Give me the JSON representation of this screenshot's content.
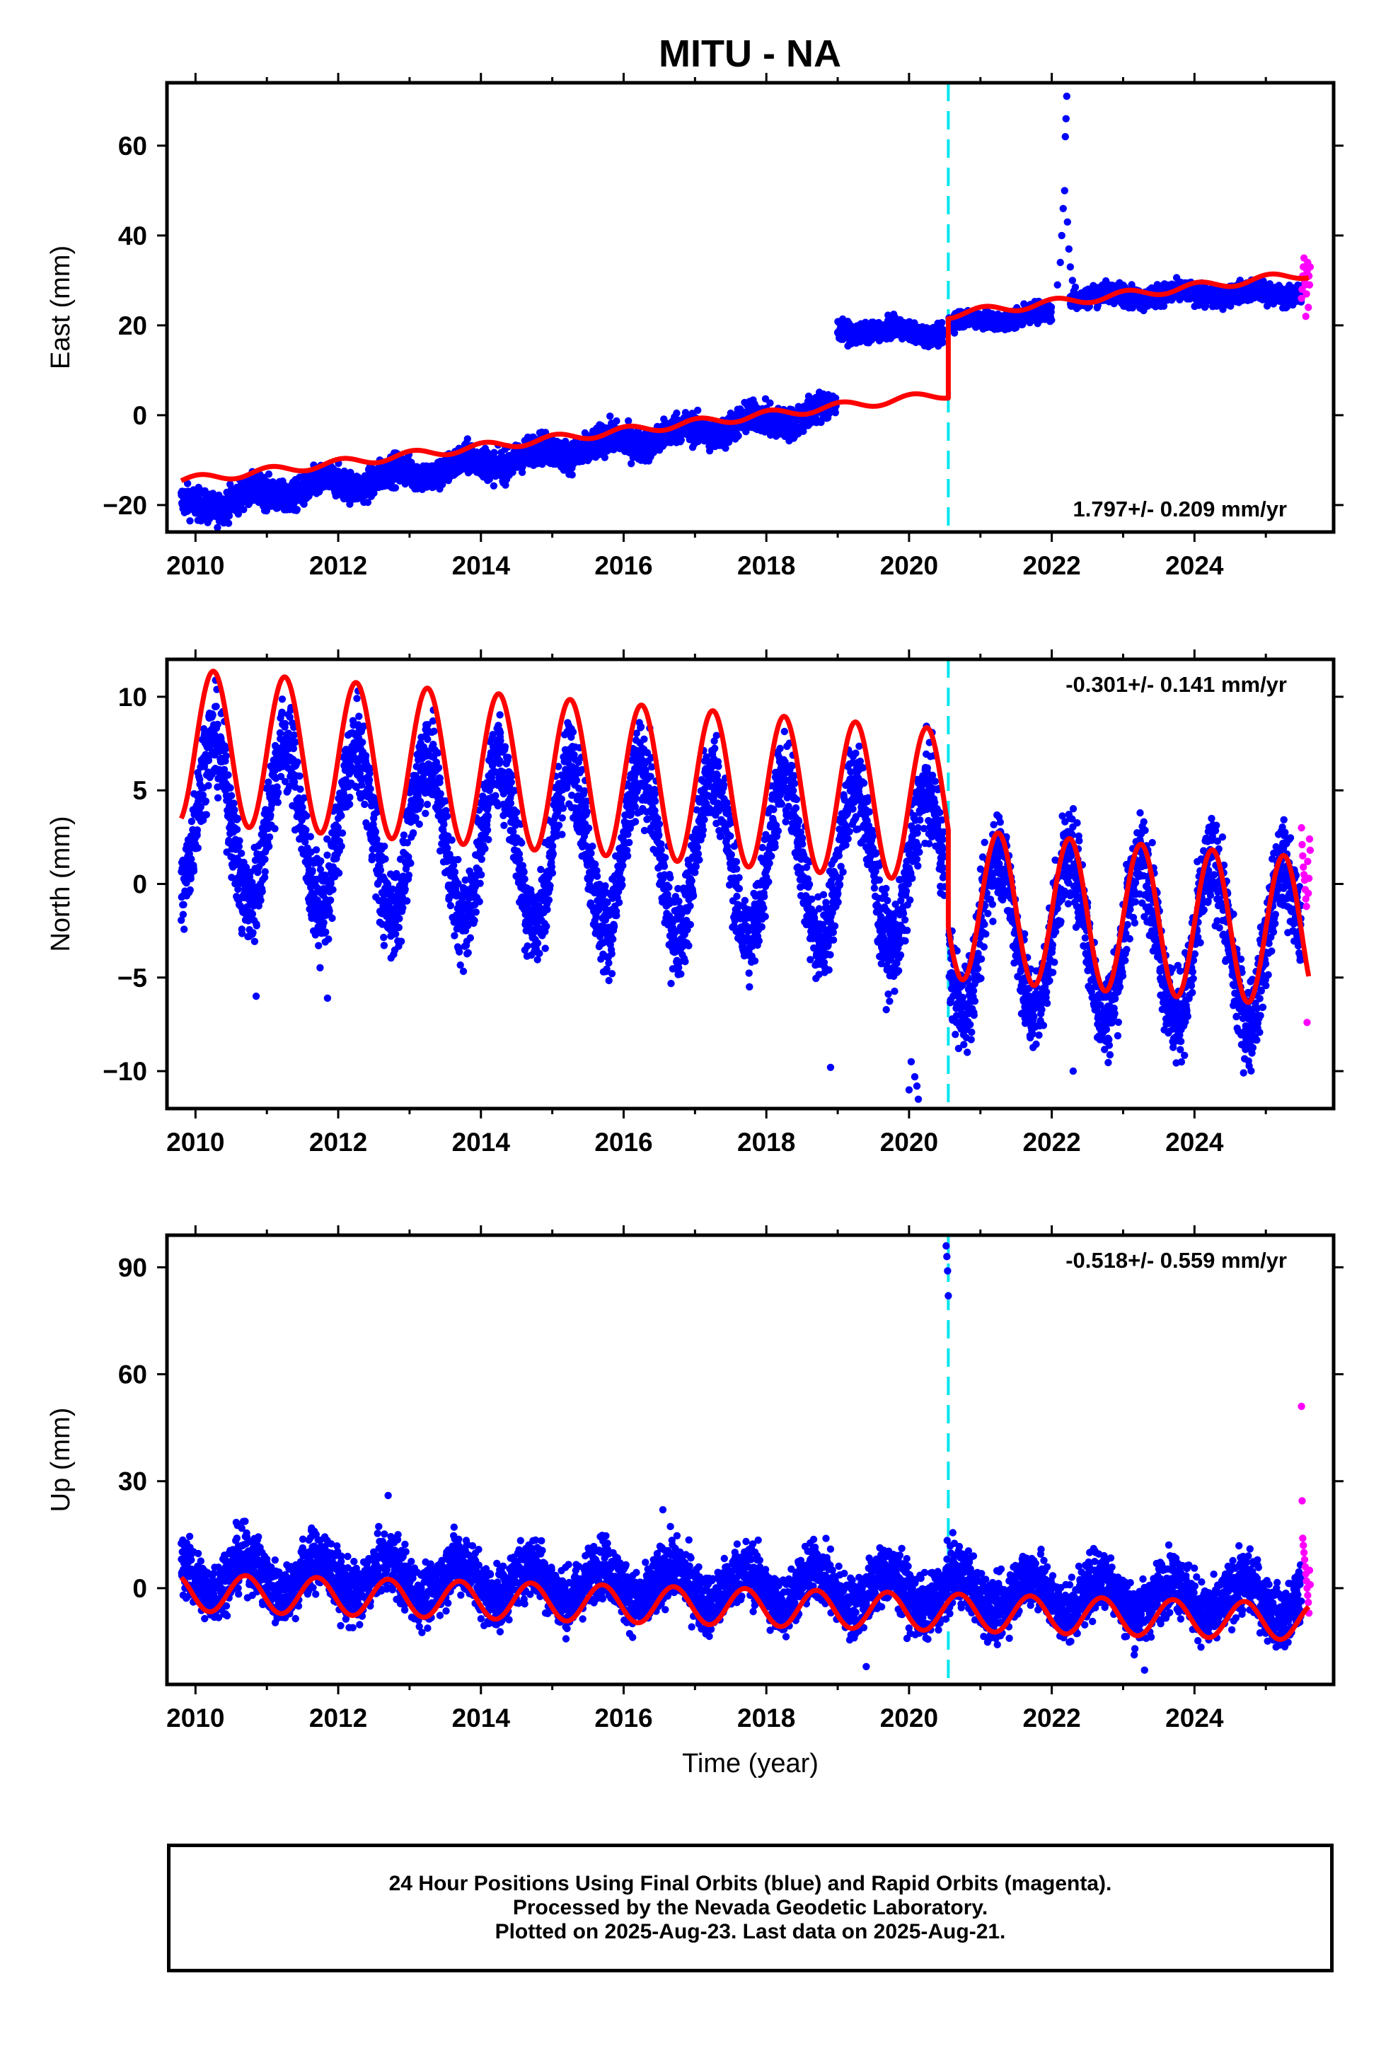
{
  "title": "MITU - NA",
  "chart_data": [
    {
      "type": "scatter",
      "panel": "east",
      "ylabel": "East (mm)",
      "xlabel": "",
      "xlim": [
        2009.6,
        2025.95
      ],
      "ylim": [
        -26,
        74
      ],
      "xticks": [
        2010,
        2012,
        2014,
        2016,
        2018,
        2020,
        2022,
        2024
      ],
      "xtick_labels": [
        "2010",
        "2012",
        "2014",
        "2016",
        "2018",
        "2020",
        "2022",
        "2024"
      ],
      "yticks": [
        -20,
        0,
        20,
        40,
        60
      ],
      "ytick_labels": [
        "−20",
        "0",
        "20",
        "40",
        "60"
      ],
      "velocity_label": "1.797+/- 0.209 mm/yr",
      "velocity_label_position": "bottom-right",
      "event_line_x": 2020.55,
      "series": [
        {
          "kind": "final_orbit_points",
          "color": "#0000ff",
          "segments": [
            {
              "x0": 2009.8,
              "x1": 2018.98,
              "y0": -20.5,
              "y1": 1.0,
              "noise": 1.8,
              "annual_amp": 1.5,
              "phase": 0.55
            },
            {
              "x0": 2019.0,
              "x1": 2020.5,
              "y0": 19.0,
              "y1": 18.3,
              "noise": 1.1,
              "annual_amp": 0.8,
              "phase": 0.55
            },
            {
              "x0": 2020.56,
              "x1": 2022.0,
              "y0": 20.5,
              "y1": 22.5,
              "noise": 1.1,
              "annual_amp": 0.8,
              "phase": 0.55
            },
            {
              "x0": 2022.25,
              "x1": 2025.5,
              "y0": 26.5,
              "y1": 27.2,
              "noise": 1.2,
              "annual_amp": 0.8,
              "phase": 0.55
            }
          ],
          "transient": {
            "points": [
              [
                2022.08,
                29
              ],
              [
                2022.12,
                34
              ],
              [
                2022.14,
                40
              ],
              [
                2022.16,
                46
              ],
              [
                2022.18,
                50
              ],
              [
                2022.19,
                62
              ],
              [
                2022.2,
                66
              ],
              [
                2022.21,
                71
              ],
              [
                2022.22,
                43
              ],
              [
                2022.24,
                37
              ],
              [
                2022.26,
                33
              ],
              [
                2022.29,
                30
              ],
              [
                2022.33,
                28.5
              ]
            ]
          }
        },
        {
          "kind": "rapid_orbit_points",
          "color": "#ff00ff",
          "x0": 2025.5,
          "x1": 2025.63,
          "values": [
            26,
            28,
            31,
            33,
            35,
            30,
            29,
            22,
            27,
            32,
            34,
            24,
            31,
            29,
            33
          ]
        },
        {
          "kind": "model_fit",
          "color": "#ff0000",
          "pieces": [
            {
              "x0": 2009.8,
              "x1": 2020.55,
              "y0": -14.6,
              "slope": 1.797,
              "amp": 0.9,
              "phase": 0.8
            },
            {
              "x0": 2020.55,
              "x1": 2025.6,
              "y0": 21.5,
              "slope": 1.797,
              "amp": 0.9,
              "phase": 0.8
            }
          ]
        }
      ]
    },
    {
      "type": "scatter",
      "panel": "north",
      "ylabel": "North (mm)",
      "xlabel": "",
      "xlim": [
        2009.6,
        2025.95
      ],
      "ylim": [
        -12,
        12
      ],
      "xticks": [
        2010,
        2012,
        2014,
        2016,
        2018,
        2020,
        2022,
        2024
      ],
      "xtick_labels": [
        "2010",
        "2012",
        "2014",
        "2016",
        "2018",
        "2020",
        "2022",
        "2024"
      ],
      "yticks": [
        -10,
        -5,
        0,
        5,
        10
      ],
      "ytick_labels": [
        "−10",
        "−5",
        "0",
        "5",
        "10"
      ],
      "velocity_label": "-0.301+/- 0.141 mm/yr",
      "velocity_label_position": "top-right",
      "event_line_x": 2020.55,
      "series": [
        {
          "kind": "final_orbit_points",
          "color": "#0000ff",
          "segments": [
            {
              "x0": 2009.8,
              "x1": 2020.5,
              "y0": 3.5,
              "y1": 0.6,
              "noise": 1.3,
              "annual_amp": 4.3,
              "phase": 0.0
            },
            {
              "x0": 2020.56,
              "x1": 2025.5,
              "y0": -2.4,
              "y1": -3.4,
              "noise": 1.3,
              "annual_amp": 4.2,
              "phase": 0.0
            }
          ],
          "outliers": [
            [
              2010.85,
              -6
            ],
            [
              2011.85,
              -6.1
            ],
            [
              2018.9,
              -9.8
            ],
            [
              2020.0,
              -11.0
            ],
            [
              2020.03,
              -9.5
            ],
            [
              2020.08,
              -10.3
            ],
            [
              2020.11,
              -10.8
            ],
            [
              2020.13,
              -11.5
            ],
            [
              2022.3,
              -10
            ]
          ]
        },
        {
          "kind": "rapid_orbit_points",
          "color": "#ff00ff",
          "x0": 2025.5,
          "x1": 2025.63,
          "values": [
            3.0,
            2.1,
            1.5,
            0.9,
            0.5,
            0.2,
            -0.3,
            -0.8,
            -1.2,
            -7.4,
            1.2,
            -0.5,
            0.3,
            2.4,
            1.8
          ]
        },
        {
          "kind": "model_fit",
          "color": "#ff0000",
          "pieces": [
            {
              "x0": 2009.8,
              "x1": 2020.55,
              "y0": 3.5,
              "slope": -0.301,
              "amp": 4.1,
              "phase": 0.0
            },
            {
              "x0": 2020.55,
              "x1": 2025.6,
              "y0": -2.3,
              "slope": -0.301,
              "amp": 4.0,
              "phase": 0.0
            }
          ]
        }
      ]
    },
    {
      "type": "scatter",
      "panel": "up",
      "ylabel": "Up (mm)",
      "xlabel": "Time (year)",
      "xlim": [
        2009.6,
        2025.95
      ],
      "ylim": [
        -27,
        99
      ],
      "xticks": [
        2010,
        2012,
        2014,
        2016,
        2018,
        2020,
        2022,
        2024
      ],
      "xtick_labels": [
        "2010",
        "2012",
        "2014",
        "2016",
        "2018",
        "2020",
        "2022",
        "2024"
      ],
      "yticks": [
        0,
        30,
        60,
        90
      ],
      "ytick_labels": [
        "0",
        "30",
        "60",
        "90"
      ],
      "velocity_label": "-0.518+/- 0.559 mm/yr",
      "velocity_label_position": "top-right",
      "event_line_x": 2020.55,
      "series": [
        {
          "kind": "final_orbit_points",
          "color": "#0000ff",
          "segments": [
            {
              "x0": 2009.8,
              "x1": 2025.5,
              "y0": 4.0,
              "y1": -3.5,
              "noise": 4.5,
              "annual_amp": 5.0,
              "phase": 0.45
            }
          ],
          "outliers": [
            [
              2020.52,
              96
            ],
            [
              2020.53,
              93
            ],
            [
              2020.54,
              89
            ],
            [
              2020.55,
              82
            ],
            [
              2012.7,
              26
            ],
            [
              2016.55,
              22
            ],
            [
              2019.4,
              -22
            ],
            [
              2023.3,
              -23
            ]
          ]
        },
        {
          "kind": "rapid_orbit_points",
          "color": "#ff00ff",
          "x0": 2025.5,
          "x1": 2025.63,
          "values": [
            51,
            24.5,
            14,
            12,
            10,
            8,
            6,
            4,
            2,
            0,
            -2,
            -4,
            -7,
            5,
            1
          ]
        },
        {
          "kind": "model_fit",
          "color": "#ff0000",
          "pieces": [
            {
              "x0": 2009.8,
              "x1": 2025.6,
              "y0": 3.0,
              "slope": -0.518,
              "amp": 5.2,
              "phase": 0.45
            }
          ]
        }
      ]
    }
  ],
  "footer": {
    "line1": "24 Hour Positions Using Final Orbits (blue) and Rapid Orbits (magenta).",
    "line2": "Processed by the Nevada Geodetic Laboratory.",
    "line3": "Plotted on 2025-Aug-23. Last data on 2025-Aug-21."
  }
}
